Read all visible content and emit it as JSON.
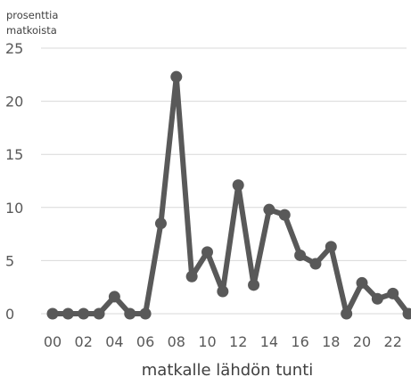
{
  "chart_data": {
    "type": "line",
    "ylabel_lines": [
      "prosenttia",
      "matkoista"
    ],
    "xlabel": "matkalle lähdön tunti",
    "ylim": [
      0,
      25
    ],
    "yticks": [
      "0",
      "5",
      "10",
      "15",
      "20",
      "25"
    ],
    "categories": [
      "00",
      "01",
      "02",
      "03",
      "04",
      "05",
      "06",
      "07",
      "08",
      "09",
      "10",
      "11",
      "12",
      "13",
      "14",
      "15",
      "16",
      "17",
      "18",
      "19",
      "20",
      "21",
      "22",
      "23"
    ],
    "xtick_labels": [
      "00",
      "02",
      "04",
      "06",
      "08",
      "10",
      "12",
      "14",
      "16",
      "18",
      "20",
      "22"
    ],
    "grid": true,
    "series": [
      {
        "color": "#595959",
        "values": [
          0,
          0,
          0,
          0,
          1.6,
          0,
          0,
          8.5,
          22.3,
          3.5,
          5.8,
          2.1,
          12.1,
          2.7,
          9.8,
          9.3,
          5.5,
          4.7,
          6.3,
          0,
          2.9,
          1.4,
          1.9,
          0
        ]
      }
    ]
  }
}
